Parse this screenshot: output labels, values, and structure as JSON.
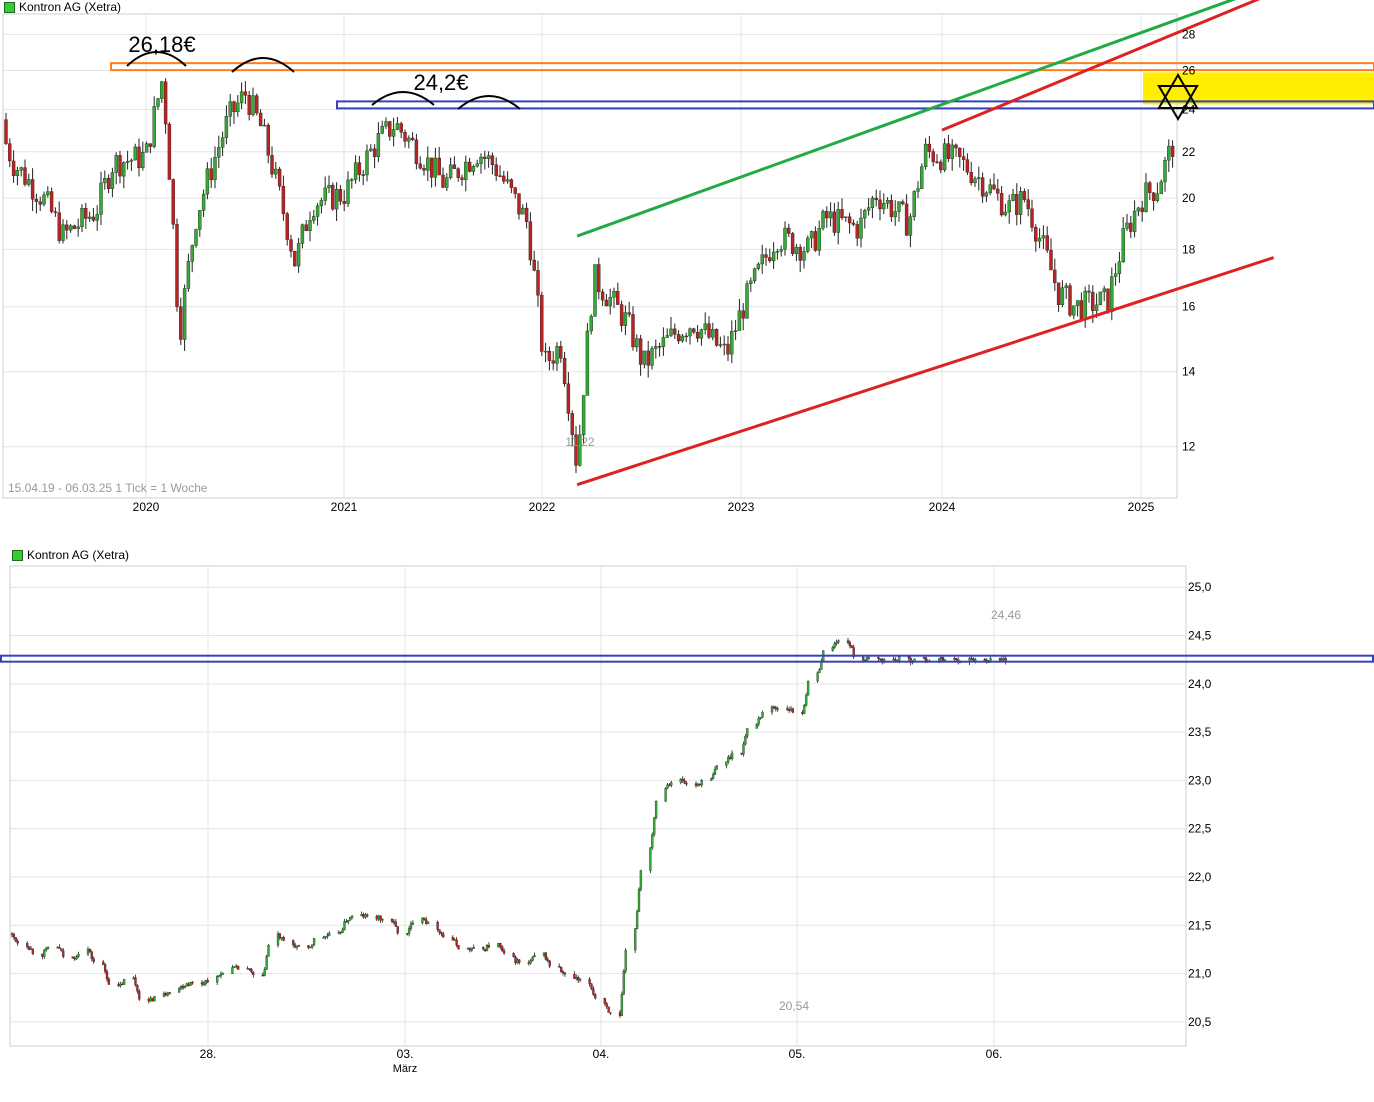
{
  "chart_data": [
    {
      "type": "candlestick",
      "instrument": "Kontron AG (Xetra)",
      "info": "15.04.19 - 06.03.25   1 Tick = 1 Woche",
      "x_ticks": [
        "2020",
        "2021",
        "2022",
        "2023",
        "2024",
        "2025"
      ],
      "y_ticks": [
        12,
        14,
        16,
        18,
        20,
        22,
        24,
        26,
        28
      ],
      "y_scale": "log",
      "ylim": [
        10.8,
        29.2
      ],
      "low_label": "11,22",
      "annotations": {
        "resistance_1": {
          "label": "26,18€",
          "value": 26.18
        },
        "resistance_2": {
          "label": "24,2€",
          "value": 24.2
        },
        "target_zone": {
          "from": 24.25,
          "to": 25.9,
          "color": "#ffee00"
        }
      },
      "trendlines": [
        {
          "color": "#22aa44",
          "from": {
            "date": "2022-03",
            "value": 18.5
          },
          "to": {
            "date": "2025-09",
            "value": 31.0
          }
        },
        {
          "color": "#dd2222",
          "from": {
            "date": "2024-01",
            "value": 23.0
          },
          "to": {
            "date": "2025-09",
            "value": 30.5
          }
        },
        {
          "color": "#dd2222",
          "from": {
            "date": "2022-03",
            "value": 11.1
          },
          "to": {
            "date": "2025-09",
            "value": 17.7
          }
        }
      ],
      "series": [
        {
          "x": [
            "2019-04",
            "2019-05",
            "2019-07",
            "2019-08",
            "2019-10",
            "2019-11",
            "2020-01",
            "2020-02",
            "2020-03",
            "2020-04",
            "2020-06",
            "2020-07",
            "2020-08",
            "2020-10",
            "2020-11",
            "2021-01",
            "2021-03",
            "2021-04",
            "2021-06",
            "2021-07",
            "2021-09",
            "2021-10",
            "2021-12",
            "2022-01",
            "2022-02",
            "2022-03",
            "2022-04",
            "2022-06",
            "2022-07",
            "2022-09",
            "2022-10",
            "2022-12",
            "2023-01",
            "2023-03",
            "2023-05",
            "2023-06",
            "2023-08",
            "2023-09",
            "2023-11",
            "2023-12",
            "2024-02",
            "2024-03",
            "2024-05",
            "2024-06",
            "2024-08",
            "2024-09",
            "2024-11",
            "2024-12",
            "2025-01",
            "2025-02",
            "2025-03"
          ],
          "values": [
            23.5,
            21.5,
            19.8,
            18.5,
            19.5,
            21.5,
            21.8,
            25.6,
            15.0,
            19.2,
            23.6,
            24.8,
            23.0,
            17.5,
            19.8,
            20.2,
            22.5,
            23.3,
            21.5,
            20.6,
            22.0,
            21.4,
            19.0,
            14.2,
            14.8,
            11.5,
            17.0,
            15.5,
            14.2,
            15.2,
            15.5,
            14.5,
            16.0,
            18.5,
            18.0,
            19.2,
            18.8,
            20.2,
            19.0,
            22.0,
            21.6,
            21.0,
            19.6,
            20.0,
            16.5,
            16.0,
            16.2,
            18.5,
            20.0,
            20.5,
            22.5
          ]
        }
      ]
    },
    {
      "type": "candlestick",
      "instrument": "Kontron AG (Xetra)",
      "x_ticks": [
        "28.",
        "03.",
        "04.",
        "05.",
        "06."
      ],
      "x_sublabel": "März",
      "y_ticks": [
        "20,5",
        "21,0",
        "21,5",
        "22,0",
        "22,5",
        "23,0",
        "23,5",
        "24,0",
        "24,5",
        "25,0"
      ],
      "ylim": [
        20.25,
        25.22
      ],
      "high_label": "24,46",
      "low_label": "20,54",
      "annotations": {
        "resistance": {
          "value": 24.25
        }
      },
      "series": [
        {
          "x": [
            0,
            2,
            4,
            6,
            8,
            10,
            12,
            14,
            16,
            18,
            20,
            22,
            23,
            25,
            27,
            29,
            31,
            33,
            35,
            37,
            39,
            41,
            43,
            44,
            46,
            48,
            50,
            52,
            54,
            56,
            58,
            60,
            62,
            64,
            66,
            68,
            70,
            72,
            74,
            76,
            78,
            80,
            82,
            84,
            86,
            88,
            90,
            92,
            94,
            96,
            98,
            100,
            102,
            104,
            106,
            108,
            110,
            112,
            114,
            116,
            118,
            120,
            122,
            124,
            126,
            128,
            130
          ],
          "values": [
            21.4,
            21.3,
            21.2,
            21.28,
            21.15,
            21.25,
            21.08,
            20.85,
            20.95,
            20.7,
            20.78,
            20.85,
            20.9,
            20.9,
            20.95,
            21.05,
            21.05,
            20.95,
            21.4,
            21.3,
            21.25,
            21.38,
            21.4,
            21.55,
            21.6,
            21.58,
            21.55,
            21.4,
            21.6,
            21.48,
            21.35,
            21.25,
            21.25,
            21.3,
            21.15,
            21.1,
            21.2,
            21.05,
            20.95,
            20.9,
            20.7,
            20.54,
            21.45,
            22.3,
            22.95,
            23.0,
            22.95,
            23.0,
            23.2,
            23.3,
            23.6,
            23.75,
            23.75,
            23.7,
            24.1,
            24.4,
            24.45,
            24.25,
            24.25,
            24.25,
            24.25,
            24.25,
            24.25,
            24.25,
            24.25,
            24.25,
            24.25
          ]
        }
      ]
    }
  ]
}
